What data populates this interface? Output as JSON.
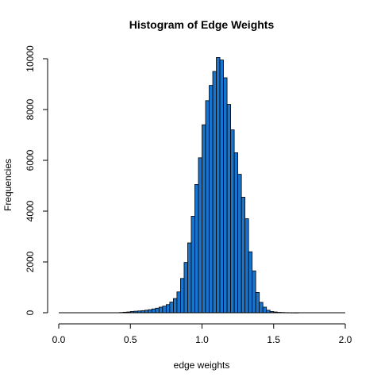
{
  "chart_data": {
    "type": "bar",
    "title": "Histogram of Edge Weights",
    "xlabel": "edge weights",
    "ylabel": "Frequencies",
    "xlim": [
      0.0,
      2.0
    ],
    "ylim": [
      0,
      10000
    ],
    "bin_width": 0.025,
    "x_ticks": [
      "0.0",
      "0.5",
      "1.0",
      "1.5",
      "2.0"
    ],
    "y_ticks": [
      "0",
      "2000",
      "4000",
      "6000",
      "8000",
      "10000"
    ],
    "bar_color": "#1874CD",
    "bar_edge_color": "#000000",
    "bins_start": [
      0.425,
      0.45,
      0.475,
      0.5,
      0.525,
      0.55,
      0.575,
      0.6,
      0.625,
      0.65,
      0.675,
      0.7,
      0.725,
      0.75,
      0.775,
      0.8,
      0.825,
      0.85,
      0.875,
      0.9,
      0.925,
      0.95,
      0.975,
      1.0,
      1.025,
      1.05,
      1.075,
      1.1,
      1.125,
      1.15,
      1.175,
      1.2,
      1.225,
      1.25,
      1.275,
      1.3,
      1.325,
      1.35,
      1.375,
      1.4,
      1.425,
      1.45,
      1.475,
      1.5,
      1.525,
      1.55,
      1.575,
      1.6,
      1.625,
      1.65
    ],
    "values": [
      10,
      20,
      30,
      50,
      60,
      70,
      80,
      100,
      120,
      150,
      180,
      220,
      260,
      320,
      420,
      560,
      820,
      1350,
      1980,
      2750,
      3800,
      5050,
      6100,
      7400,
      8350,
      8950,
      9500,
      10050,
      9950,
      9250,
      8200,
      7200,
      6300,
      5450,
      4550,
      3700,
      2400,
      1650,
      800,
      410,
      220,
      100,
      50,
      30,
      15,
      10,
      5,
      3,
      2,
      1
    ]
  }
}
